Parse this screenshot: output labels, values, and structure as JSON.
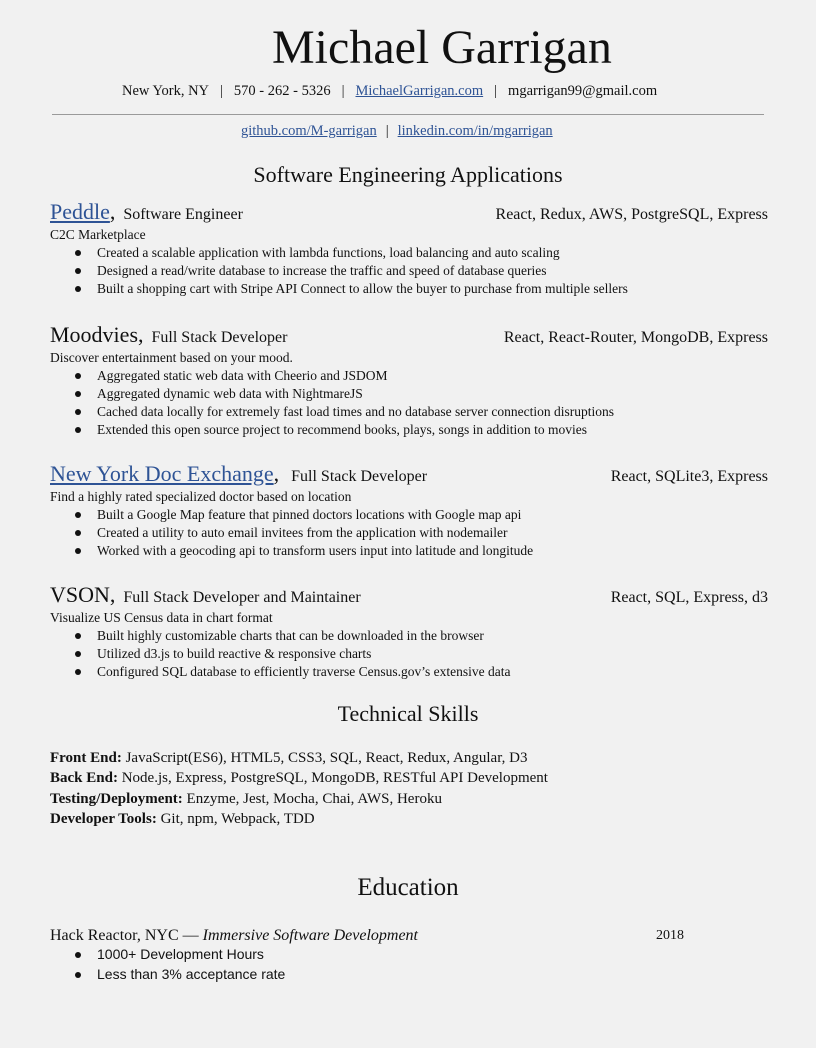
{
  "header": {
    "name": "Michael Garrigan",
    "contact": {
      "location": "New York, NY",
      "phone": "570 - 262 - 5326",
      "website": "MichaelGarrigan.com",
      "email": "mgarrigan99@gmail.com",
      "separator": "|"
    },
    "links": {
      "github": "github.com/M-garrigan",
      "linkedin": "linkedin.com/in/mgarrigan",
      "separator": "|"
    }
  },
  "sections": {
    "applications": "Software Engineering Applications",
    "skills": "Technical Skills",
    "education": "Education"
  },
  "projects": [
    {
      "name": "Peddle",
      "linked": true,
      "punct": ",",
      "role": "Software Engineer",
      "tech": "React, Redux, AWS, PostgreSQL, Express",
      "description": "C2C Marketplace",
      "bullets": [
        "Created a scalable application with lambda functions, load balancing and auto scaling",
        "Designed a read/write database to increase the traffic and speed of database queries",
        "Built a shopping cart with Stripe API Connect to allow the buyer to purchase from multiple sellers"
      ]
    },
    {
      "name": "Moodvies",
      "linked": false,
      "punct": ",",
      "role": "Full Stack Developer",
      "tech": "React, React-Router, MongoDB, Express",
      "description": "Discover entertainment based on your mood.",
      "bullets": [
        "Aggregated static web data with Cheerio and JSDOM",
        "Aggregated dynamic web data with NightmareJS",
        "Cached data locally for extremely fast load times and no database server connection disruptions",
        "Extended this open source project to recommend books, plays, songs in addition to movies"
      ]
    },
    {
      "name": "New York Doc Exchange",
      "linked": true,
      "punct": ",",
      "role": "Full Stack Developer",
      "tech": "React, SQLite3, Express",
      "description": "Find a highly rated specialized doctor based on location",
      "bullets": [
        "Built a Google Map feature that pinned doctors locations with Google map api",
        "Created a utility to auto email invitees from the application with nodemailer",
        "Worked with a geocoding api to transform users input into latitude and longitude"
      ]
    },
    {
      "name": "VSON",
      "linked": false,
      "punct": ",",
      "role": "Full Stack Developer and Maintainer",
      "tech": "React, SQL, Express, d3",
      "description": "Visualize US Census data in chart format",
      "bullets": [
        "Built highly customizable charts that can be downloaded in the browser",
        "Utilized d3.js to build reactive & responsive charts",
        "Configured SQL database to efficiently traverse Census.gov’s extensive data"
      ]
    }
  ],
  "skills": [
    {
      "label": "Front End:",
      "value": "JavaScript(ES6), HTML5, CSS3, SQL, React, Redux, Angular, D3"
    },
    {
      "label": "Back End:",
      "value": "Node.js, Express, PostgreSQL, MongoDB, RESTful API Development"
    },
    {
      "label": "Testing/Deployment:",
      "value": "Enzyme, Jest, Mocha, Chai, AWS, Heroku"
    },
    {
      "label": "Developer Tools:",
      "value": "Git, npm, Webpack, TDD"
    }
  ],
  "education": {
    "school": "Hack Reactor, NYC —",
    "program": "Immersive Software Development",
    "year": "2018",
    "bullets": [
      "1000+ Development Hours",
      "Less than 3% acceptance rate"
    ]
  },
  "colors": {
    "link": "#2e5395",
    "text": "#111111",
    "background": "#f1f1f1"
  }
}
